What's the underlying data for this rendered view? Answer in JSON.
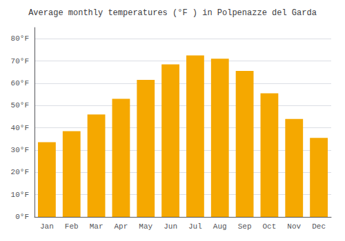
{
  "chart_data": {
    "type": "bar",
    "title": "Average monthly temperatures (°F ) in Polpenazze del Garda",
    "categories": [
      "Jan",
      "Feb",
      "Mar",
      "Apr",
      "May",
      "Jun",
      "Jul",
      "Aug",
      "Sep",
      "Oct",
      "Nov",
      "Dec"
    ],
    "values": [
      33.5,
      38.5,
      46.0,
      53.0,
      61.5,
      68.5,
      72.5,
      71.0,
      65.5,
      55.5,
      44.0,
      35.5
    ],
    "color": "#F5A800",
    "ylim": [
      0,
      85
    ],
    "yticks": [
      {
        "value": 0,
        "label": "0°F"
      },
      {
        "value": 10,
        "label": "10°F"
      },
      {
        "value": 20,
        "label": "20°F"
      },
      {
        "value": 30,
        "label": "30°F"
      },
      {
        "value": 40,
        "label": "40°F"
      },
      {
        "value": 50,
        "label": "50°F"
      },
      {
        "value": 60,
        "label": "60°F"
      },
      {
        "value": 70,
        "label": "70°F"
      },
      {
        "value": 80,
        "label": "80°F"
      }
    ],
    "grid": true
  }
}
